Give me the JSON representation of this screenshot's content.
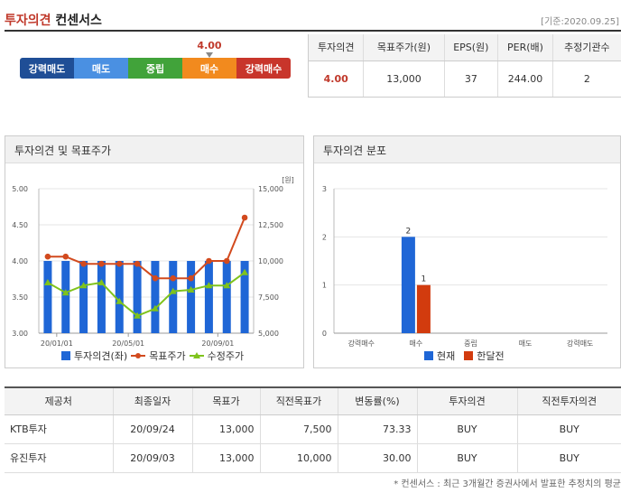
{
  "header": {
    "title_part1": "투자의견",
    "title_part2": "컨센서스",
    "base_date": "[기준:2020.09.25]"
  },
  "scale": {
    "marker_value": "4.00",
    "segments": [
      {
        "label": "강력매도",
        "color": "#1f4e96"
      },
      {
        "label": "매도",
        "color": "#4a90e2"
      },
      {
        "label": "중립",
        "color": "#41a33a"
      },
      {
        "label": "매수",
        "color": "#f28a1e"
      },
      {
        "label": "강력매수",
        "color": "#c8352b"
      }
    ],
    "active_index": 3
  },
  "summary": {
    "headers": [
      "투자의견",
      "목표주가(원)",
      "EPS(원)",
      "PER(배)",
      "추정기관수"
    ],
    "values": [
      "4.00",
      "13,000",
      "37",
      "244.00",
      "2"
    ]
  },
  "left_panel": {
    "title": "투자의견 및 목표주가",
    "legend": [
      "투자의견(좌)",
      "목표주가",
      "수정주가"
    ]
  },
  "right_panel": {
    "title": "투자의견 분포",
    "legend": [
      "현재",
      "한달전"
    ]
  },
  "colors": {
    "bar": "#1f66d6",
    "target": "#d24a1e",
    "adjusted": "#7fc31c",
    "current": "#1f66d6",
    "month_ago": "#d23b0e"
  },
  "chart_data": [
    {
      "type": "bar",
      "title": "",
      "x_ticks": [
        "20/01/01",
        "20/05/01",
        "20/09/01"
      ],
      "y_left": {
        "ticks": [
          "3.00",
          "3.50",
          "4.00",
          "4.50",
          "5.00"
        ],
        "lim": [
          3.0,
          5.0
        ]
      },
      "y_right": {
        "unit": "[원]",
        "ticks": [
          "5,000",
          "7,500",
          "10,000",
          "12,500",
          "15,000"
        ],
        "lim": [
          5000,
          15000
        ]
      },
      "series": [
        {
          "name": "투자의견(좌)",
          "kind": "bar",
          "values": [
            4,
            4,
            4,
            4,
            4,
            4,
            4,
            4,
            4,
            4,
            4,
            4
          ]
        },
        {
          "name": "목표주가",
          "kind": "line",
          "values": [
            10300,
            10300,
            9800,
            9800,
            9800,
            9800,
            8800,
            8800,
            8800,
            10000,
            10000,
            13000
          ]
        },
        {
          "name": "수정주가",
          "kind": "line",
          "values": [
            8500,
            7800,
            8300,
            8500,
            7200,
            6200,
            6700,
            7900,
            8000,
            8300,
            8300,
            9200
          ]
        }
      ]
    },
    {
      "type": "bar",
      "title": "",
      "categories": [
        "강력매수",
        "매수",
        "중립",
        "매도",
        "강력매도"
      ],
      "ylim": [
        0,
        3
      ],
      "y_ticks": [
        "0",
        "1",
        "2",
        "3"
      ],
      "series": [
        {
          "name": "현재",
          "values": [
            0,
            2,
            0,
            0,
            0
          ]
        },
        {
          "name": "한달전",
          "values": [
            0,
            1,
            0,
            0,
            0
          ]
        }
      ]
    }
  ],
  "table": {
    "headers": [
      "제공처",
      "최종일자",
      "목표가",
      "직전목표가",
      "변동률(%)",
      "투자의견",
      "직전투자의견"
    ],
    "rows": [
      [
        "KTB투자",
        "20/09/24",
        "13,000",
        "7,500",
        "73.33",
        "BUY",
        "BUY"
      ],
      [
        "유진투자",
        "20/09/03",
        "13,000",
        "10,000",
        "30.00",
        "BUY",
        "BUY"
      ]
    ]
  },
  "footnote": "* 컨센서스 : 최근 3개월간 증권사에서 발표한 추정치의 평균"
}
